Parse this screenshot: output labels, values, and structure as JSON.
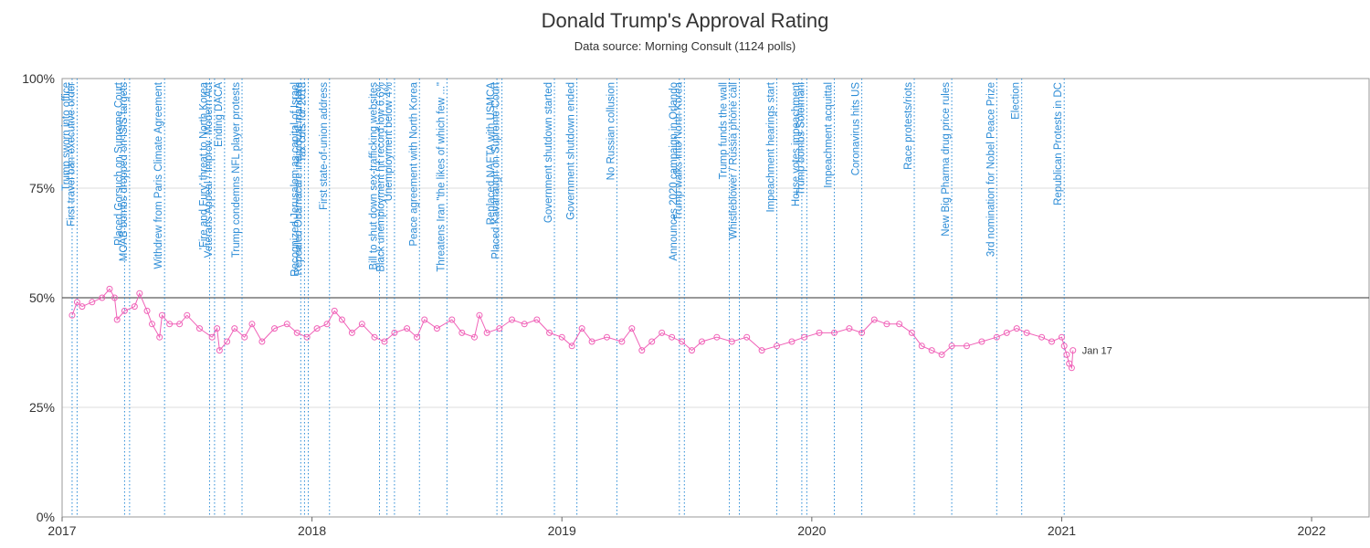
{
  "chart_data": {
    "type": "line",
    "title": "Donald Trump's Approval Rating",
    "subtitle": "Data source: Morning Consult (1124 polls)",
    "xlim": [
      2017,
      2022.23
    ],
    "xticks": [
      2017,
      2018,
      2019,
      2020,
      2021,
      2022
    ],
    "ylim": [
      0,
      100
    ],
    "yticks": [
      {
        "value": 0,
        "label": "0%"
      },
      {
        "value": 25,
        "label": "25%"
      },
      {
        "value": 50,
        "label": "50%"
      },
      {
        "value": 75,
        "label": "75%"
      },
      {
        "value": 100,
        "label": "100%"
      }
    ],
    "grid": true,
    "reference_line": 50,
    "end_label": "Jan 17",
    "annotation_color": "#2a8bd6",
    "series": [
      {
        "name": "Approval",
        "color": "#f062b8",
        "x": [
          2017.04,
          2017.06,
          2017.08,
          2017.12,
          2017.16,
          2017.19,
          2017.21,
          2017.22,
          2017.25,
          2017.29,
          2017.31,
          2017.34,
          2017.36,
          2017.39,
          2017.4,
          2017.43,
          2017.47,
          2017.5,
          2017.55,
          2017.6,
          2017.62,
          2017.63,
          2017.66,
          2017.69,
          2017.73,
          2017.76,
          2017.8,
          2017.85,
          2017.9,
          2017.94,
          2017.98,
          2018.02,
          2018.06,
          2018.09,
          2018.12,
          2018.16,
          2018.2,
          2018.25,
          2018.29,
          2018.33,
          2018.38,
          2018.42,
          2018.45,
          2018.5,
          2018.56,
          2018.6,
          2018.65,
          2018.67,
          2018.7,
          2018.75,
          2018.8,
          2018.85,
          2018.9,
          2018.95,
          2019.0,
          2019.04,
          2019.08,
          2019.12,
          2019.18,
          2019.24,
          2019.28,
          2019.32,
          2019.36,
          2019.4,
          2019.44,
          2019.48,
          2019.52,
          2019.56,
          2019.62,
          2019.68,
          2019.74,
          2019.8,
          2019.86,
          2019.92,
          2019.97,
          2020.03,
          2020.09,
          2020.15,
          2020.2,
          2020.25,
          2020.3,
          2020.35,
          2020.4,
          2020.44,
          2020.48,
          2020.52,
          2020.56,
          2020.62,
          2020.68,
          2020.74,
          2020.78,
          2020.82,
          2020.86,
          2020.92,
          2020.96,
          2021.0,
          2021.01,
          2021.02,
          2021.03,
          2021.04,
          2021.045
        ],
        "values": [
          46,
          49,
          48,
          49,
          50,
          52,
          50,
          45,
          47,
          48,
          51,
          47,
          44,
          41,
          46,
          44,
          44,
          46,
          43,
          41,
          43,
          38,
          40,
          43,
          41,
          44,
          40,
          43,
          44,
          42,
          41,
          43,
          44,
          47,
          45,
          42,
          44,
          41,
          40,
          42,
          43,
          41,
          45,
          43,
          45,
          42,
          41,
          46,
          42,
          43,
          45,
          44,
          45,
          42,
          41,
          39,
          43,
          40,
          41,
          40,
          43,
          38,
          40,
          42,
          41,
          40,
          38,
          40,
          41,
          40,
          41,
          38,
          39,
          40,
          41,
          42,
          42,
          43,
          42,
          45,
          44,
          44,
          42,
          39,
          38,
          37,
          39,
          39,
          40,
          41,
          42,
          43,
          42,
          41,
          40,
          41,
          39,
          37,
          35,
          34,
          38
        ]
      }
    ],
    "annotations": [
      {
        "text": "Trump sworn into office",
        "x": 2017.04
      },
      {
        "text": "First travel ban executive order",
        "x": 2017.06
      },
      {
        "text": "Placed Gorsuch on Supreme Court",
        "x": 2017.25
      },
      {
        "text": "MOAB bombs dropped on ISIS targets",
        "x": 2017.27
      },
      {
        "text": "Withdrew from Paris Climate Agreement",
        "x": 2017.41
      },
      {
        "text": "'Fire and Fury' threat to North Korea",
        "x": 2017.59
      },
      {
        "text": "Veterans Appeal / Improv. Modern Act",
        "x": 2017.61
      },
      {
        "text": "Ending DACA",
        "x": 2017.65
      },
      {
        "text": "Trump condemns NFL player protests",
        "x": 2017.72
      },
      {
        "text": "Recognized Jerusalem as capital of Israel",
        "x": 2017.955
      },
      {
        "text": "Repealed Obamacare individual mandate",
        "x": 2017.97
      },
      {
        "text": "Tax cuts for 2018",
        "x": 2017.985
      },
      {
        "text": "First state-of-union address",
        "x": 2018.07
      },
      {
        "text": "Bill to shut down sex-trafficking websites",
        "x": 2018.27
      },
      {
        "text": "Black unemployment hit record low 6.6%",
        "x": 2018.3
      },
      {
        "text": "Unemployment below 4%",
        "x": 2018.33
      },
      {
        "text": "Peace agreement with North Korea",
        "x": 2018.43
      },
      {
        "text": "Threatens Iran \"the likes of which few ...\"",
        "x": 2018.54
      },
      {
        "text": "Replaced NAFTA with USMCA",
        "x": 2018.74
      },
      {
        "text": "Placed Kavanaugh on Supreme Court",
        "x": 2018.76
      },
      {
        "text": "Government shutdown started",
        "x": 2018.97
      },
      {
        "text": "Government shutdown ended",
        "x": 2019.06
      },
      {
        "text": "No Russian collusion",
        "x": 2019.22
      },
      {
        "text": "Announces 2020 campaign in Orlando",
        "x": 2019.47
      },
      {
        "text": "Trump walks into North Korea",
        "x": 2019.49
      },
      {
        "text": "Trump funds the wall",
        "x": 2019.67
      },
      {
        "text": "Whistleblower / Russia phone call",
        "x": 2019.71
      },
      {
        "text": "Impeachment hearings start",
        "x": 2019.86
      },
      {
        "text": "House votes impeachment",
        "x": 2019.96
      },
      {
        "text": "Trump bombs Soleimani",
        "x": 2019.98
      },
      {
        "text": "Impeachment acquittal",
        "x": 2020.09
      },
      {
        "text": "Coronavirus hits US",
        "x": 2020.2
      },
      {
        "text": "Race protests/riots",
        "x": 2020.41
      },
      {
        "text": "New Big Pharma drug price rules",
        "x": 2020.56
      },
      {
        "text": "3rd nomination for Nobel Peace Prize",
        "x": 2020.74
      },
      {
        "text": "Election",
        "x": 2020.84
      },
      {
        "text": "Republican Protests in DC",
        "x": 2021.01
      }
    ]
  }
}
